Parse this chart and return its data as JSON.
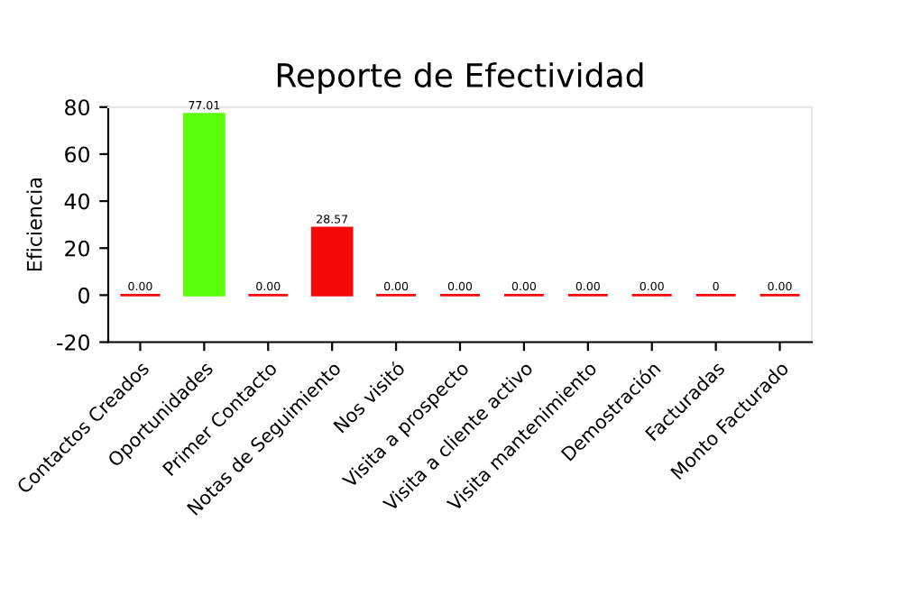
{
  "chart_data": {
    "type": "bar",
    "title": "Reporte de Efectividad",
    "ylabel": "Eficiencia",
    "categories": [
      "Contactos Creados",
      "Oportunidades",
      "Primer Contacto",
      "Notas de Seguimiento",
      "Nos visitó",
      "Visita a prospecto",
      "Visita a cliente activo",
      "Visita mantenimiento",
      "Demostración",
      "Facturadas",
      "Monto Facturado"
    ],
    "values": [
      0,
      77.01,
      0,
      28.57,
      0,
      0,
      0,
      0,
      0,
      0,
      0
    ],
    "value_labels": [
      "0.00",
      "77.01",
      "0.00",
      "28.57",
      "0.00",
      "0.00",
      "0.00",
      "0.00",
      "0.00",
      "0",
      "0.00"
    ],
    "colors": [
      "#f50a0a",
      "#5aff0a",
      "#f50a0a",
      "#f50a0a",
      "#f50a0a",
      "#f50a0a",
      "#f50a0a",
      "#f50a0a",
      "#f50a0a",
      "#f50a0a",
      "#f50a0a"
    ],
    "ylim": [
      -20,
      80
    ],
    "yticks": [
      -20,
      0,
      20,
      40,
      60,
      80
    ],
    "grid": false,
    "legend": false
  }
}
